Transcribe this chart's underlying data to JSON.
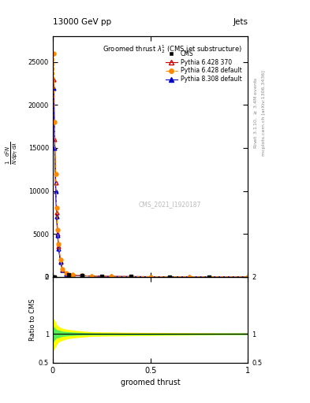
{
  "title": "13000 GeV pp",
  "title_right": "Jets",
  "xlabel": "groomed thrust",
  "ylabel_ratio": "Ratio to CMS",
  "watermark": "CMS_2021_I1920187",
  "py6_370_x": [
    0.005,
    0.01,
    0.015,
    0.02,
    0.025,
    0.03,
    0.04,
    0.05,
    0.07,
    0.1,
    0.15,
    0.2,
    0.3,
    0.5,
    0.7,
    1.0
  ],
  "py6_370_y": [
    23000,
    16000,
    11000,
    7500,
    5000,
    3500,
    1800,
    800,
    350,
    200,
    130,
    80,
    40,
    10,
    3,
    0
  ],
  "py6_def_x": [
    0.005,
    0.01,
    0.015,
    0.02,
    0.025,
    0.03,
    0.04,
    0.05,
    0.07,
    0.1,
    0.15,
    0.2,
    0.3,
    0.5,
    0.7,
    1.0
  ],
  "py6_def_y": [
    26000,
    18000,
    12000,
    8000,
    5500,
    3800,
    2000,
    900,
    400,
    220,
    140,
    90,
    45,
    12,
    4,
    0
  ],
  "py8_def_x": [
    0.005,
    0.01,
    0.015,
    0.02,
    0.025,
    0.03,
    0.04,
    0.05,
    0.07,
    0.1,
    0.15,
    0.2,
    0.3,
    0.5,
    0.7,
    1.0
  ],
  "py8_def_y": [
    22000,
    15000,
    10000,
    7000,
    4800,
    3300,
    1700,
    750,
    330,
    190,
    125,
    75,
    38,
    9,
    2.5,
    0
  ],
  "cms_x": [
    0.08,
    0.15,
    0.25,
    0.4,
    0.6,
    0.8
  ],
  "cms_y": [
    250,
    120,
    60,
    20,
    5,
    1
  ],
  "ylim_main": [
    0,
    28000
  ],
  "ylim_ratio": [
    0.5,
    2.0
  ],
  "xlim": [
    0,
    1
  ],
  "ratio_yellow_x": [
    0.0,
    0.005,
    0.01,
    0.015,
    0.02,
    0.03,
    0.05,
    0.08,
    0.13,
    0.2,
    0.4,
    1.0
  ],
  "ratio_yellow_y_low": [
    0.72,
    0.74,
    0.77,
    0.8,
    0.83,
    0.87,
    0.9,
    0.93,
    0.95,
    0.97,
    0.98,
    1.0
  ],
  "ratio_yellow_y_high": [
    1.22,
    1.25,
    1.22,
    1.18,
    1.15,
    1.12,
    1.09,
    1.07,
    1.05,
    1.03,
    1.02,
    1.01
  ],
  "ratio_green_x": [
    0.0,
    0.005,
    0.01,
    0.015,
    0.02,
    0.03,
    0.05,
    0.08,
    0.13,
    0.2,
    0.4,
    1.0
  ],
  "ratio_green_y_low": [
    0.87,
    0.89,
    0.91,
    0.93,
    0.94,
    0.95,
    0.97,
    0.98,
    0.99,
    0.995,
    0.998,
    1.0
  ],
  "ratio_green_y_high": [
    1.1,
    1.12,
    1.1,
    1.08,
    1.07,
    1.06,
    1.04,
    1.03,
    1.02,
    1.01,
    1.005,
    1.01
  ],
  "color_py6_370": "#cc0000",
  "color_py6_def": "#ff8800",
  "color_py8_def": "#0000cc",
  "color_cms": "#000000",
  "ytick_vals": [
    0,
    5000,
    10000,
    15000,
    20000,
    25000
  ],
  "ytick_labels": [
    "0",
    "5000",
    "10000",
    "15000",
    "20000",
    "25000"
  ]
}
